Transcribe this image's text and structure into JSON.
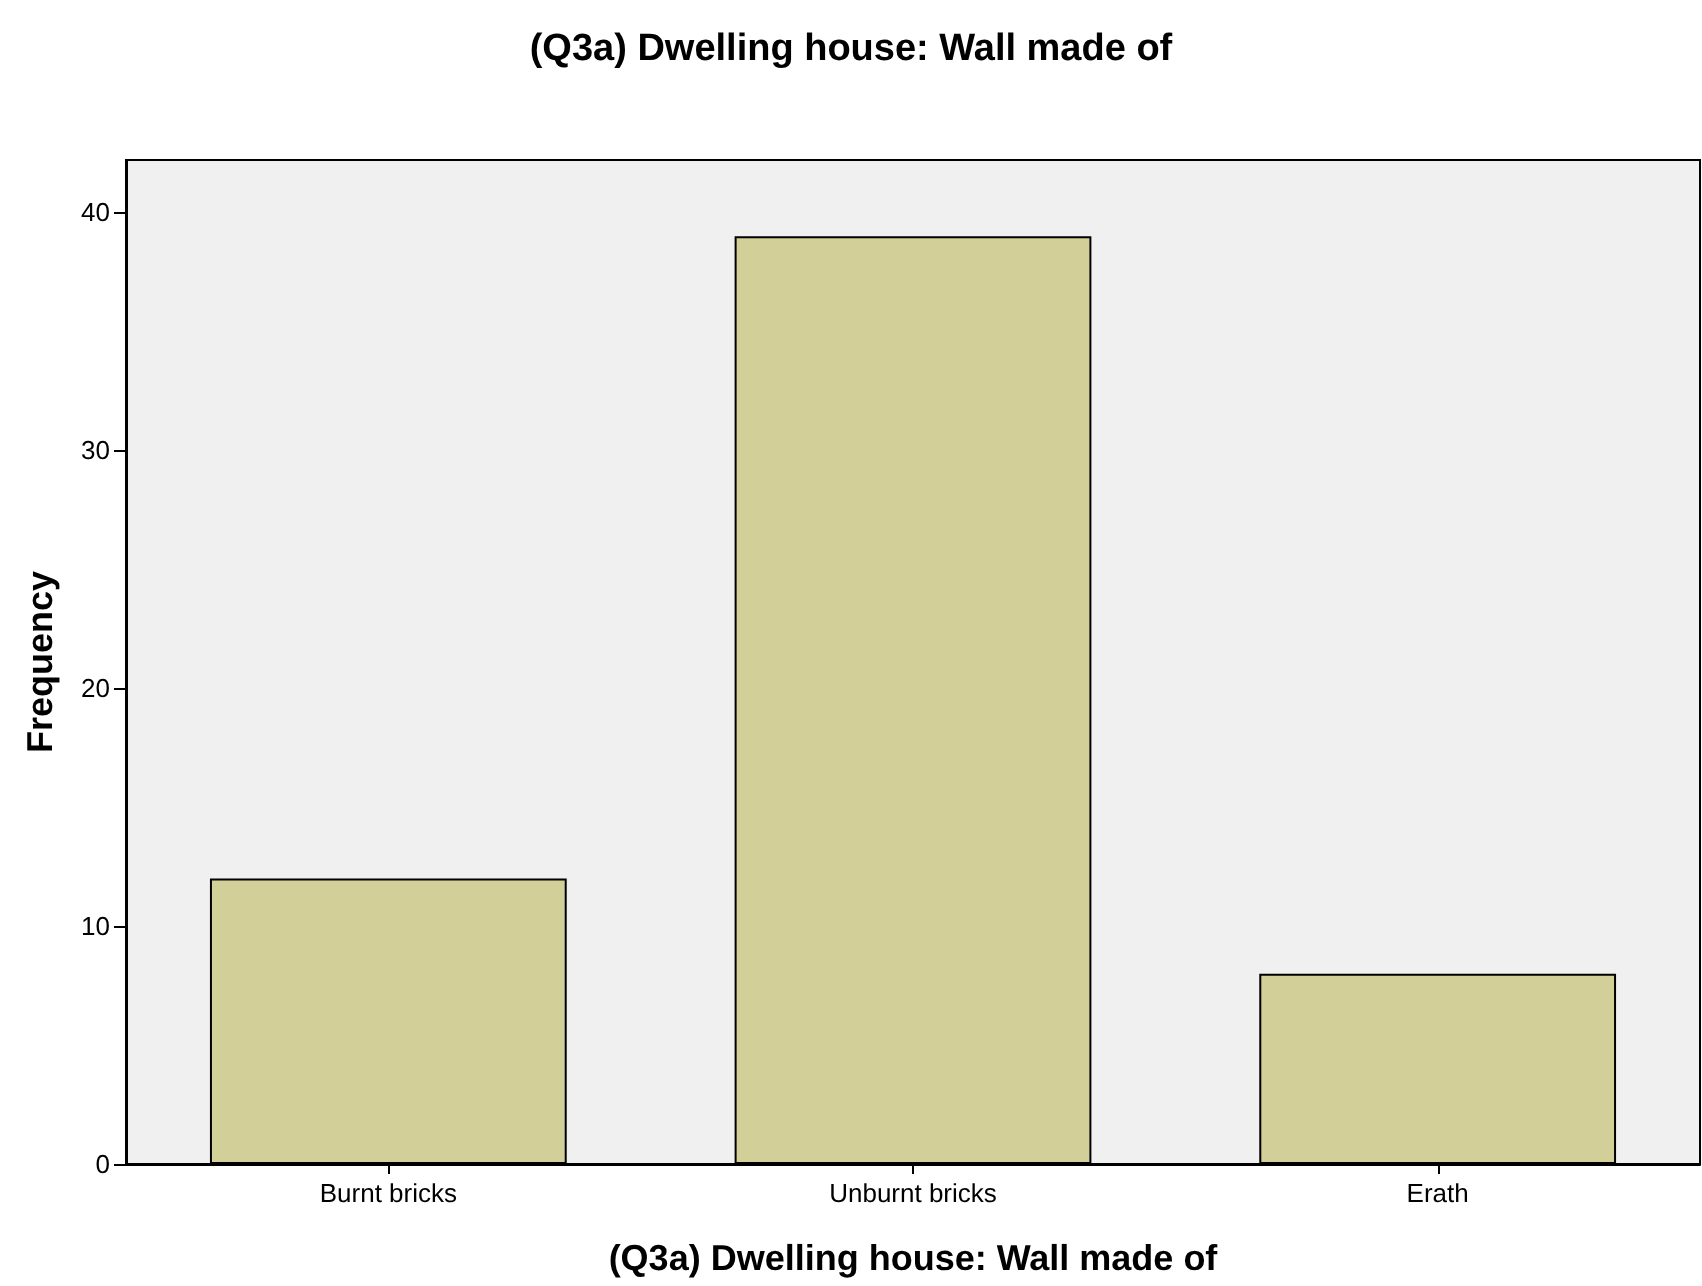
{
  "chart_data": {
    "type": "bar",
    "title": "(Q3a) Dwelling house: Wall made of",
    "xlabel": "(Q3a) Dwelling house: Wall made of",
    "ylabel": "Frequency",
    "categories": [
      "Burnt bricks",
      "Unburnt bricks",
      "Erath"
    ],
    "values": [
      12,
      39,
      8
    ],
    "color": "#d3cf98",
    "ylim": [
      0,
      42.2
    ],
    "yticks": [
      0,
      10,
      20,
      30,
      40
    ]
  }
}
